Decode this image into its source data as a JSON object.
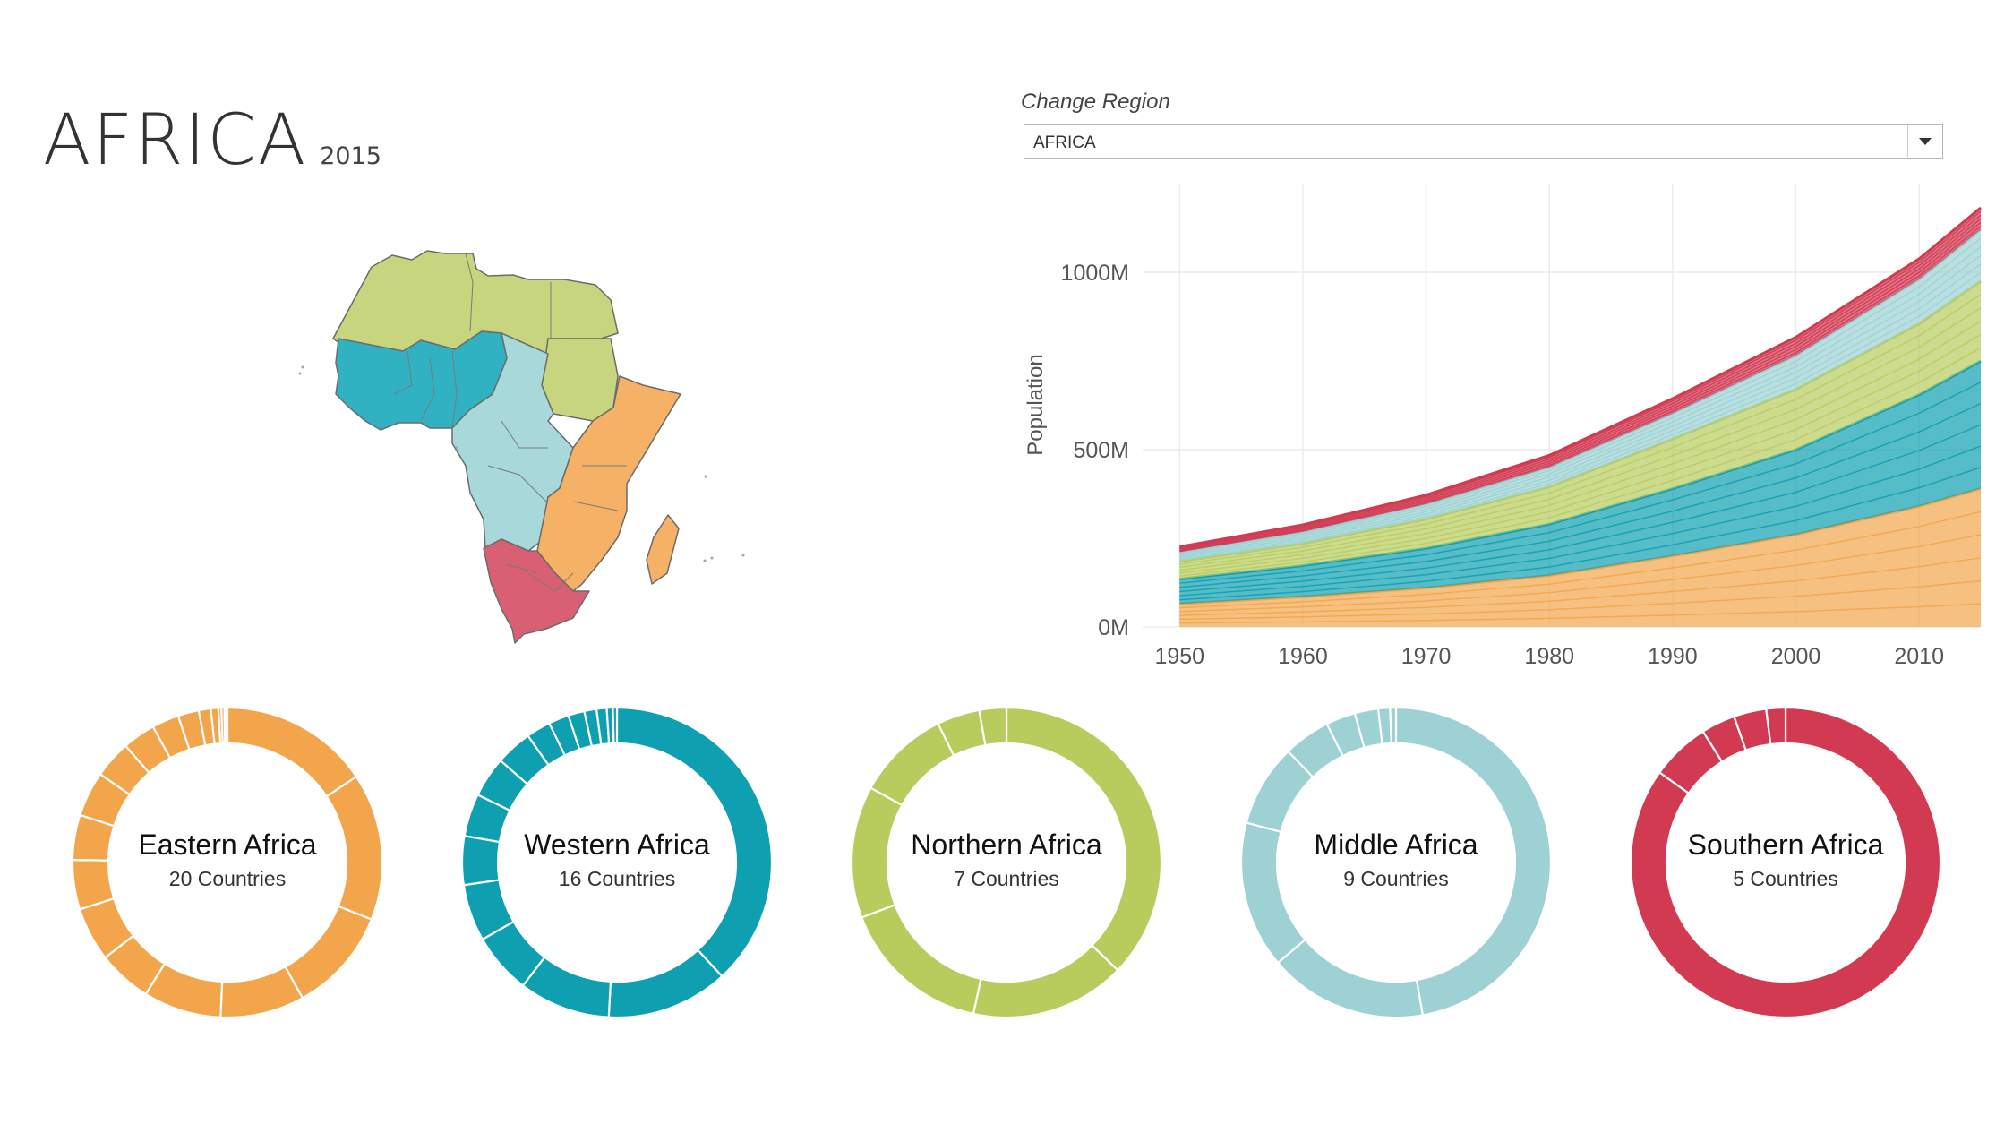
{
  "header": {
    "title": "AFRICA",
    "year": "2015"
  },
  "filter": {
    "label": "Change Region",
    "value": "AFRICA"
  },
  "colors": {
    "eastern": "#f2a54a",
    "western": "#0e9fb0",
    "northern": "#b8cc5e",
    "middle": "#9dd1d3",
    "southern": "#d23a52"
  },
  "chart_data": [
    {
      "type": "area",
      "ylabel": "Population",
      "x": [
        1950,
        1960,
        1970,
        1980,
        1990,
        2000,
        2010,
        2015
      ],
      "x_ticks": [
        "1950",
        "1960",
        "1970",
        "1980",
        "1990",
        "2000",
        "2010"
      ],
      "y_ticks": [
        "0M",
        "500M",
        "1000M"
      ],
      "ylim": [
        0,
        1250
      ],
      "series": [
        {
          "name": "Eastern Africa",
          "color": "#f2a54a",
          "values": [
            65,
            85,
            110,
            145,
            200,
            260,
            340,
            390
          ]
        },
        {
          "name": "Western Africa",
          "color": "#0e9fb0",
          "values": [
            70,
            88,
            112,
            145,
            190,
            240,
            315,
            360
          ]
        },
        {
          "name": "Northern Africa",
          "color": "#b8cc5e",
          "values": [
            50,
            62,
            82,
            105,
            140,
            170,
            200,
            225
          ]
        },
        {
          "name": "Middle Africa",
          "color": "#9dd1d3",
          "values": [
            26,
            33,
            42,
            55,
            72,
            95,
            125,
            145
          ]
        },
        {
          "name": "Southern Africa",
          "color": "#d23a52",
          "values": [
            15,
            20,
            26,
            34,
            42,
            52,
            58,
            62
          ]
        }
      ]
    },
    {
      "type": "pie",
      "name": "Eastern Africa",
      "count_label": "20 Countries",
      "color": "#f2a54a",
      "values": [
        100,
        98,
        70,
        56,
        52,
        36,
        36,
        33,
        30,
        30,
        25,
        22,
        18,
        14,
        8,
        5,
        2,
        2,
        1,
        1
      ]
    },
    {
      "type": "pie",
      "name": "Western Africa",
      "count_label": "16 Countries",
      "color": "#0e9fb0",
      "values": [
        180,
        60,
        45,
        30,
        28,
        24,
        21,
        20,
        18,
        12,
        10,
        8,
        6,
        5,
        3,
        2
      ]
    },
    {
      "type": "pie",
      "name": "Northern Africa",
      "count_label": "7 Countries",
      "color": "#b8cc5e",
      "values": [
        92,
        40,
        39,
        34,
        24,
        11,
        7
      ]
    },
    {
      "type": "pie",
      "name": "Middle Africa",
      "count_label": "9 Countries",
      "color": "#9dd1d3",
      "values": [
        77,
        27,
        25,
        14,
        8,
        5,
        4,
        2,
        1
      ]
    },
    {
      "type": "pie",
      "name": "Southern Africa",
      "count_label": "5 Countries",
      "color": "#d23a52",
      "values": [
        55,
        4,
        2.3,
        2.2,
        1.3
      ]
    }
  ]
}
